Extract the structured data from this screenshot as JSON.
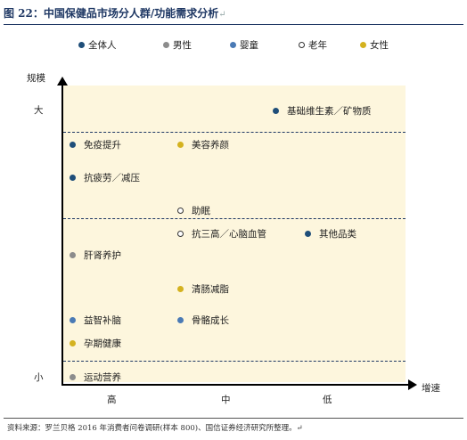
{
  "figure": {
    "title": "图 22：中国保健品市场分人群/功能需求分析",
    "title_mark": "↵",
    "source": "资料来源：罗兰贝格 2016 年消费者问卷调研(样本 800)、国信证券经济研究所整理。",
    "source_mark": "↵"
  },
  "colors": {
    "全体人": "#1f4e79",
    "男性": "#8c8c8c",
    "婴童": "#4a7ab5",
    "老年": "#ffffff",
    "女性": "#d4b21f",
    "background": "#fdf6dd",
    "dashed_line": "#1f3864"
  },
  "legend": [
    {
      "label": "全体人",
      "group": "全体人"
    },
    {
      "label": "男性",
      "group": "男性"
    },
    {
      "label": "婴童",
      "group": "婴童"
    },
    {
      "label": "老年",
      "group": "老年"
    },
    {
      "label": "女性",
      "group": "女性"
    }
  ],
  "axes": {
    "y_title": "规模",
    "y_high": "大",
    "y_low": "小",
    "x_title": "增速",
    "x_ticks": [
      "高",
      "中",
      "低"
    ]
  },
  "items": [
    {
      "label": "基础维生素／矿物质",
      "group": "全体人"
    },
    {
      "label": "免疫提升",
      "group": "全体人"
    },
    {
      "label": "美容养颜",
      "group": "女性"
    },
    {
      "label": "抗疲劳／减压",
      "group": "全体人"
    },
    {
      "label": "助眠",
      "group": "老年"
    },
    {
      "label": "抗三高／心脑血管",
      "group": "老年"
    },
    {
      "label": "其他品类",
      "group": "全体人"
    },
    {
      "label": "肝肾养护",
      "group": "男性"
    },
    {
      "label": "清肠减脂",
      "group": "女性"
    },
    {
      "label": "益智补脑",
      "group": "婴童"
    },
    {
      "label": "骨骼成长",
      "group": "婴童"
    },
    {
      "label": "孕期健康",
      "group": "女性"
    },
    {
      "label": "运动营养",
      "group": "男性"
    }
  ]
}
